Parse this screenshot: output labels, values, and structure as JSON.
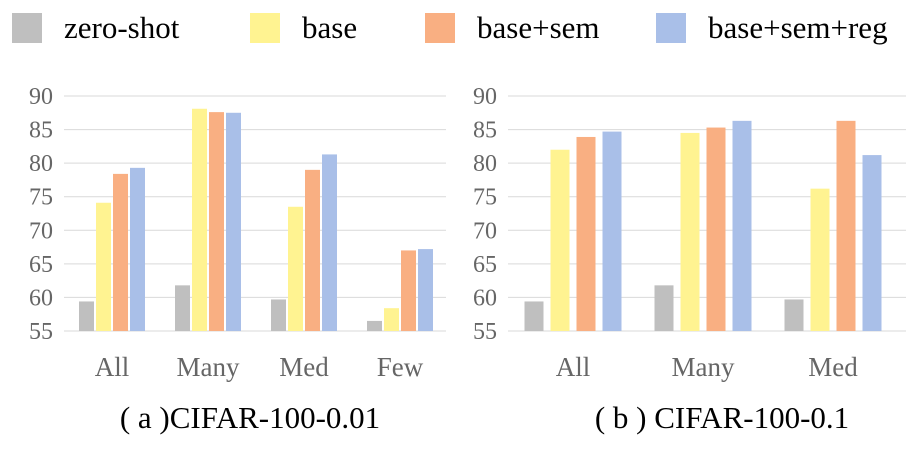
{
  "legend": [
    {
      "label": "zero-shot",
      "color": "#BFBFBF"
    },
    {
      "label": "base",
      "color": "#FFF391"
    },
    {
      "label": "base+sem",
      "color": "#F9AF82"
    },
    {
      "label": "base+sem+reg",
      "color": "#A9BFE8"
    }
  ],
  "chart_data": [
    {
      "type": "bar",
      "title": "( a )CIFAR-100-0.01",
      "categories": [
        "All",
        "Many",
        "Med",
        "Few"
      ],
      "ylim": [
        55,
        90
      ],
      "yticks": [
        55,
        60,
        65,
        70,
        75,
        80,
        85,
        90
      ],
      "grid": true,
      "series": [
        {
          "name": "zero-shot",
          "values": [
            59.4,
            61.8,
            59.7,
            56.5
          ]
        },
        {
          "name": "base",
          "values": [
            74.1,
            88.1,
            73.5,
            58.4
          ]
        },
        {
          "name": "base+sem",
          "values": [
            78.4,
            87.6,
            79.0,
            67.0
          ]
        },
        {
          "name": "base+sem+reg",
          "values": [
            79.3,
            87.5,
            81.3,
            67.2
          ]
        }
      ]
    },
    {
      "type": "bar",
      "title": "( b ) CIFAR-100-0.1",
      "categories": [
        "All",
        "Many",
        "Med"
      ],
      "ylim": [
        55,
        90
      ],
      "yticks": [
        55,
        60,
        65,
        70,
        75,
        80,
        85,
        90
      ],
      "grid": true,
      "series": [
        {
          "name": "zero-shot",
          "values": [
            59.4,
            61.8,
            59.7
          ]
        },
        {
          "name": "base",
          "values": [
            82.0,
            84.5,
            76.2
          ]
        },
        {
          "name": "base+sem",
          "values": [
            83.9,
            85.3,
            86.3
          ]
        },
        {
          "name": "base+sem+reg",
          "values": [
            84.7,
            86.3,
            81.2
          ]
        }
      ]
    }
  ]
}
